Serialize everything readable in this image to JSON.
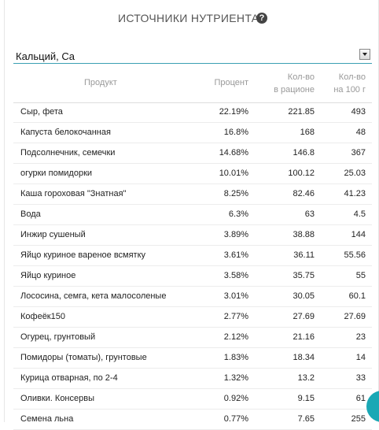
{
  "header": {
    "title": "ИСТОЧНИКИ НУТРИЕНТА",
    "help_icon": "?"
  },
  "select": {
    "value": "Кальций, Ca"
  },
  "table": {
    "columns": {
      "product": "Продукт",
      "percent": "Процент",
      "diet_line1": "Кол-во",
      "diet_line2": "в рационе",
      "per100_line1": "Кол-во",
      "per100_line2": "на 100 г"
    },
    "rows": [
      {
        "name": "Сыр, фета",
        "percent": "22.19%",
        "diet": "221.85",
        "per100": "493"
      },
      {
        "name": "Капуста белокочанная",
        "percent": "16.8%",
        "diet": "168",
        "per100": "48"
      },
      {
        "name": "Подсолнечник, семечки",
        "percent": "14.68%",
        "diet": "146.8",
        "per100": "367"
      },
      {
        "name": "огурки помидорки",
        "percent": "10.01%",
        "diet": "100.12",
        "per100": "25.03"
      },
      {
        "name": "Каша гороховая \"Знатная\"",
        "percent": "8.25%",
        "diet": "82.46",
        "per100": "41.23"
      },
      {
        "name": "Вода",
        "percent": "6.3%",
        "diet": "63",
        "per100": "4.5"
      },
      {
        "name": "Инжир сушеный",
        "percent": "3.89%",
        "diet": "38.88",
        "per100": "144"
      },
      {
        "name": "Яйцо куриное вареное всмятку",
        "percent": "3.61%",
        "diet": "36.11",
        "per100": "55.56"
      },
      {
        "name": "Яйцо куриное",
        "percent": "3.58%",
        "diet": "35.75",
        "per100": "55"
      },
      {
        "name": "Лососина, семга, кета малосоленые",
        "percent": "3.01%",
        "diet": "30.05",
        "per100": "60.1"
      },
      {
        "name": "Кофеёк150",
        "percent": "2.77%",
        "diet": "27.69",
        "per100": "27.69"
      },
      {
        "name": "Огурец, грунтовый",
        "percent": "2.12%",
        "diet": "21.16",
        "per100": "23"
      },
      {
        "name": "Помидоры (томаты), грунтовые",
        "percent": "1.83%",
        "diet": "18.34",
        "per100": "14"
      },
      {
        "name": "Курица отварная, по 2-4",
        "percent": "1.32%",
        "diet": "13.2",
        "per100": "33"
      },
      {
        "name": "Оливки. Консервы",
        "percent": "0.92%",
        "diet": "9.15",
        "per100": "61"
      },
      {
        "name": "Семена льна",
        "percent": "0.77%",
        "diet": "7.65",
        "per100": "255"
      }
    ]
  },
  "colors": {
    "accent": "#3aa0b3",
    "fab": "#1aa8b5"
  }
}
